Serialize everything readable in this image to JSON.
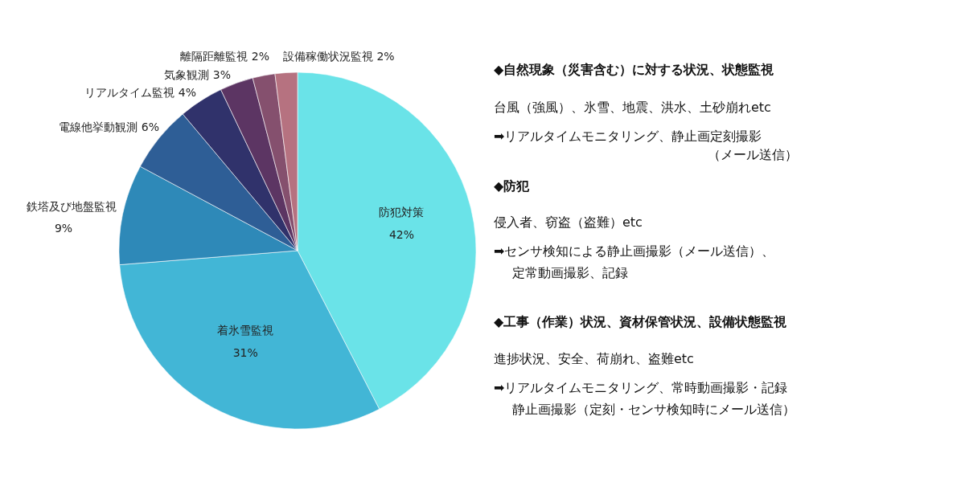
{
  "chart_data": {
    "type": "pie",
    "categories": [
      "防犯対策",
      "着氷雪監視",
      "鉄塔及び地盤監視",
      "電線他挙動観測",
      "リアルタイム監視",
      "気象観測",
      "離隔距離監視",
      "設備稼働状況監視"
    ],
    "values": [
      42,
      31,
      9,
      6,
      4,
      3,
      2,
      2
    ],
    "value_labels": [
      "42%",
      "31%",
      "9%",
      "6%",
      "4%",
      "3%",
      "2%",
      "2%"
    ],
    "colors": [
      "#6ae3e8",
      "#42b6d6",
      "#2e89b8",
      "#2e5e96",
      "#30326b",
      "#5c3563",
      "#85506e",
      "#b67280"
    ],
    "annotations": [
      "◆自然現象（災害含む）に対する状況、状態監視",
      "台風（強風）、氷雪、地震、洪水、土砂崩れetc",
      "➡リアルタイムモニタリング、静止画定刻撮影",
      "（メール送信）",
      "◆防犯",
      "侵入者、窃盗（盗難）etc",
      "➡センサ検知による静止画撮影（メール送信）、",
      "定常動画撮影、記録",
      "◆工事（作業）状況、資材保管状況、設備状態監視",
      "進捗状況、安全、荷崩れ、盗難etc",
      "➡リアルタイムモニタリング、常時動画撮影・記録",
      "静止画撮影（定刻・センサ検知時にメール送信）"
    ]
  }
}
